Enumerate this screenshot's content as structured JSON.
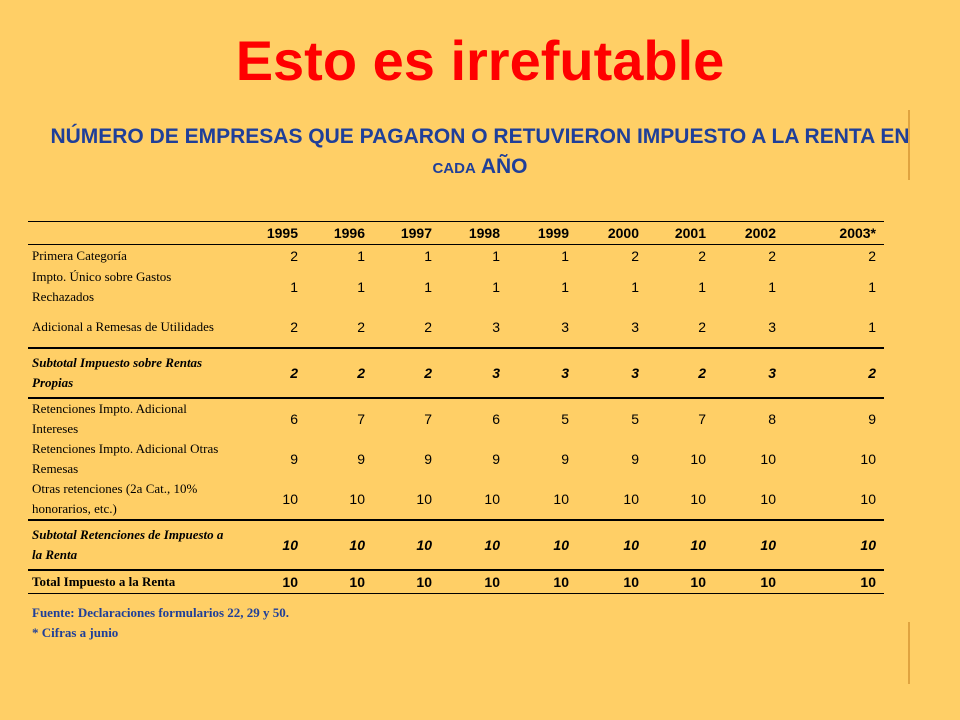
{
  "title": "Esto es irrefutable",
  "subtitle": {
    "part1": "NÚMERO DE EMPRESAS QUE PAGARON O RETUVIERON IMPUESTO A LA RENTA EN ",
    "part2": "CADA",
    "part3": " AÑO"
  },
  "table": {
    "years": [
      "1995",
      "1996",
      "1997",
      "1998",
      "1999",
      "2000",
      "2001",
      "2002",
      "2003*"
    ],
    "rows": [
      {
        "label": "Primera Categoría",
        "values": [
          "2",
          "1",
          "1",
          "1",
          "1",
          "2",
          "2",
          "2",
          "2"
        ]
      },
      {
        "label": "Impto. Único sobre Gastos Rechazados",
        "values": [
          "1",
          "1",
          "1",
          "1",
          "1",
          "1",
          "1",
          "1",
          "1"
        ]
      },
      {
        "label": "Adicional a Remesas de Utilidades",
        "values": [
          "2",
          "2",
          "2",
          "3",
          "3",
          "3",
          "2",
          "3",
          "1"
        ]
      },
      {
        "label": "Subtotal Impuesto sobre Rentas Propias",
        "values": [
          "2",
          "2",
          "2",
          "3",
          "3",
          "3",
          "2",
          "3",
          "2"
        ]
      },
      {
        "label": "Retenciones Impto. Adicional Intereses",
        "values": [
          "6",
          "7",
          "7",
          "6",
          "5",
          "5",
          "7",
          "8",
          "9"
        ]
      },
      {
        "label": "Retenciones Impto. Adicional Otras Remesas",
        "values": [
          "9",
          "9",
          "9",
          "9",
          "9",
          "9",
          "10",
          "10",
          "10"
        ]
      },
      {
        "label": "Otras retenciones (2a Cat., 10% honorarios, etc.)",
        "values": [
          "10",
          "10",
          "10",
          "10",
          "10",
          "10",
          "10",
          "10",
          "10"
        ]
      },
      {
        "label": "Subtotal Retenciones de Impuesto a la Renta",
        "values": [
          "10",
          "10",
          "10",
          "10",
          "10",
          "10",
          "10",
          "10",
          "10"
        ]
      },
      {
        "label": "Total Impuesto a la Renta",
        "values": [
          "10",
          "10",
          "10",
          "10",
          "10",
          "10",
          "10",
          "10",
          "10"
        ]
      }
    ]
  },
  "source": "Fuente: Declaraciones formularios 22, 29 y 50.",
  "note": "* Cifras a junio"
}
